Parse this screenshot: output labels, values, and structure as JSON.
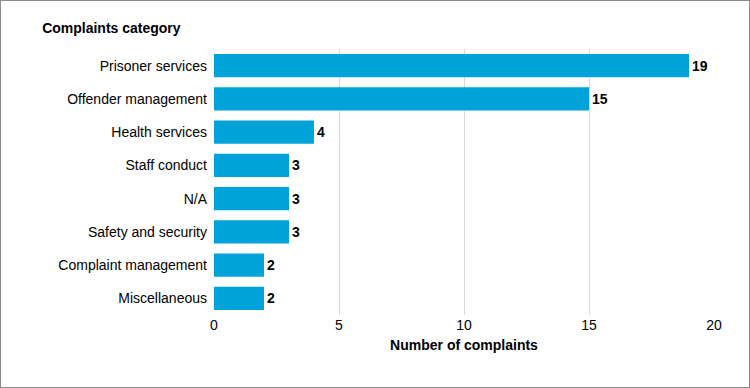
{
  "chart_data": {
    "type": "bar",
    "orientation": "horizontal",
    "title": "Complaints category",
    "xlabel": "Number of complaints",
    "categories": [
      "Prisoner services",
      "Offender management",
      "Health services",
      "Staff conduct",
      "N/A",
      "Safety and security",
      "Complaint management",
      "Miscellaneous"
    ],
    "values": [
      19,
      15,
      4,
      3,
      3,
      3,
      2,
      2
    ],
    "color": "#00a3d9",
    "xlim": [
      0,
      20
    ],
    "xticks": [
      0,
      5,
      10,
      15,
      20
    ],
    "grid": true,
    "data_labels": true
  }
}
